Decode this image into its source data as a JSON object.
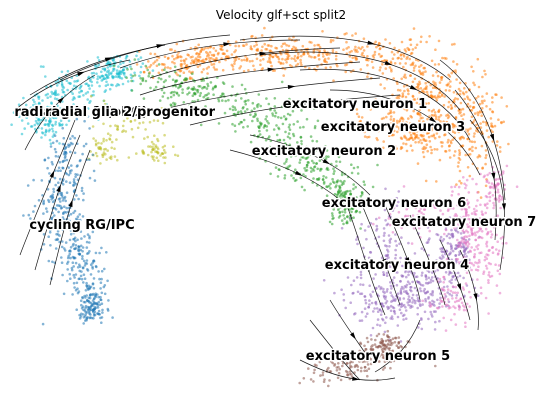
{
  "chart_data": {
    "type": "scatter",
    "title": "Velocity glf+sct split2",
    "xlabel": "",
    "ylabel": "",
    "axes_visible": false,
    "grid": false,
    "legend": "on data",
    "overlay": "velocity streamlines with arrowheads",
    "clusters": [
      {
        "label": "radial glia 1 (oRG)",
        "color": "#17becf"
      },
      {
        "label": "radial glia 2/progenitor",
        "color": "#bcbd22"
      },
      {
        "label": "cycling RG/IPC",
        "color": "#1f77b4"
      },
      {
        "label": "excitatory neuron 1",
        "color": "#ff7f0e"
      },
      {
        "label": "excitatory neuron 2",
        "color": "#2ca02c"
      },
      {
        "label": "excitatory neuron 3",
        "color": "#ff7f0e"
      },
      {
        "label": "excitatory neuron 4",
        "color": "#9467bd"
      },
      {
        "label": "excitatory neuron 5",
        "color": "#8c564b"
      },
      {
        "label": "excitatory neuron 6",
        "color": "#e377c2"
      },
      {
        "label": "excitatory neuron 7",
        "color": "#e377c2"
      }
    ]
  }
}
